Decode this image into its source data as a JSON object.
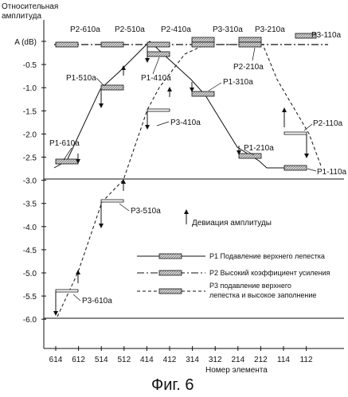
{
  "y_axis": {
    "title_line1": "Относительная",
    "title_line2": "амплитуда",
    "ticks": [
      "A (dB)",
      "-0.5",
      "-1.0",
      "-1.5",
      "-2.0",
      "-2.5",
      "-3.0",
      "-3.5",
      "-4.0",
      "-4.5",
      "-5.0",
      "-5.5",
      "-6.0"
    ]
  },
  "x_axis": {
    "label": "Номер элемента",
    "ticks": [
      "614",
      "612",
      "514",
      "512",
      "414",
      "412",
      "314",
      "312",
      "214",
      "212",
      "114",
      "112"
    ]
  },
  "deviation_label": "Девиация амплитуды",
  "legend": [
    {
      "label": "P1 Подавление верхнего лепестка"
    },
    {
      "label": "P2 Высокий коэффициент усиления"
    },
    {
      "label_line1": "P3 подавление верхнего",
      "label_line2": "лепестка и высокое заполнение"
    }
  ],
  "block_labels": {
    "p2_610a": "P2-610a",
    "p2_510a": "P2-510a",
    "p2_410a": "P2-410a",
    "p3_310a": "P3-310a",
    "p3_210a": "P3-210a",
    "p3_110a": "P3-110a",
    "p2_210a": "P2-210a",
    "p1_510a": "P1-510a",
    "p1_410a": "P1-410a",
    "p1_310a": "P1-310a",
    "p3_410a": "P3-410a",
    "p2_110a": "P2-110a",
    "p1_610a": "P1-610a",
    "p1_210a": "P1-210a",
    "p1_110a": "P1-110a",
    "p3_510a": "P3-510a",
    "p3_610a": "P3-610a"
  },
  "caption": "Фиг. 6",
  "chart_data": {
    "type": "line",
    "x_categories": [
      "614",
      "612",
      "514",
      "512",
      "414",
      "412",
      "314",
      "312",
      "214",
      "212",
      "114",
      "112"
    ],
    "y_unit": "A (dB)",
    "ylim": [
      -6.0,
      0
    ],
    "series": [
      {
        "name": "P1 Подавление верхнего лепестка",
        "style": "solid",
        "values": [
          -2.7,
          -2.6,
          -1.0,
          -1.0,
          0,
          -0.25,
          -1.1,
          -1.1,
          -2.5,
          -2.7,
          -2.7,
          -2.7
        ]
      },
      {
        "name": "P2 Высокий коэффициент усиления",
        "style": "dash-dot",
        "values": [
          0,
          0,
          0,
          0,
          0,
          0,
          0,
          0,
          0,
          0,
          0,
          0
        ]
      },
      {
        "name": "P3 подавление верхнего лепестка и высокое заполнение",
        "style": "dashed",
        "values": [
          -6.0,
          -5.4,
          -3.5,
          -3.5,
          -1.5,
          -1.5,
          0,
          0,
          0,
          0,
          -2.0,
          -2.7
        ]
      }
    ],
    "reference_lines": [
      -3.0,
      -6.0
    ]
  }
}
